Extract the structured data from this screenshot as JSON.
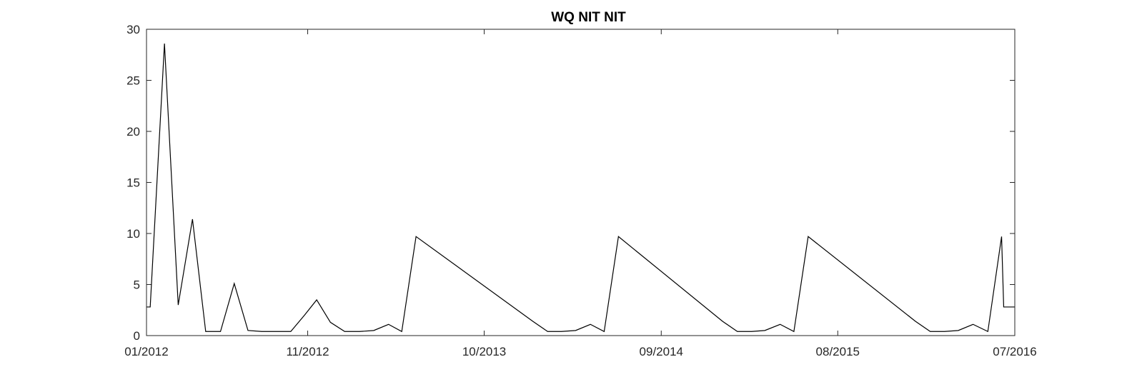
{
  "chart_data": {
    "type": "line",
    "title": "WQ NIT NIT",
    "xlabel": "",
    "ylabel": "",
    "x_axis_type": "date",
    "xlim": [
      "2012-01-01",
      "2016-07-01"
    ],
    "ylim": [
      0,
      30
    ],
    "x_ticks": [
      {
        "date": "2012-01-01",
        "label": "01/2012"
      },
      {
        "date": "2012-11-01",
        "label": "11/2012"
      },
      {
        "date": "2013-10-01",
        "label": "10/2013"
      },
      {
        "date": "2014-09-01",
        "label": "09/2014"
      },
      {
        "date": "2015-08-01",
        "label": "08/2015"
      },
      {
        "date": "2016-07-01",
        "label": "07/2016"
      }
    ],
    "y_ticks": [
      {
        "value": 0,
        "label": "0"
      },
      {
        "value": 5,
        "label": "5"
      },
      {
        "value": 10,
        "label": "10"
      },
      {
        "value": 15,
        "label": "15"
      },
      {
        "value": 20,
        "label": "20"
      },
      {
        "value": 25,
        "label": "25"
      },
      {
        "value": 30,
        "label": "30"
      }
    ],
    "grid": false,
    "legend": "none",
    "series": [
      {
        "color": "#000000",
        "points": [
          [
            "2012-01-01",
            2.8
          ],
          [
            "2012-01-08",
            2.8
          ],
          [
            "2012-02-04",
            28.6
          ],
          [
            "2012-03-01",
            3.0
          ],
          [
            "2012-03-28",
            11.4
          ],
          [
            "2012-04-22",
            0.4
          ],
          [
            "2012-05-20",
            0.4
          ],
          [
            "2012-06-15",
            5.1
          ],
          [
            "2012-07-11",
            0.5
          ],
          [
            "2012-08-06",
            0.4
          ],
          [
            "2012-09-02",
            0.4
          ],
          [
            "2012-09-30",
            0.4
          ],
          [
            "2012-10-26",
            2.0
          ],
          [
            "2012-11-18",
            3.5
          ],
          [
            "2012-12-14",
            1.3
          ],
          [
            "2013-01-10",
            0.4
          ],
          [
            "2013-02-07",
            0.4
          ],
          [
            "2013-03-06",
            0.5
          ],
          [
            "2013-04-03",
            1.1
          ],
          [
            "2013-04-28",
            0.4
          ],
          [
            "2013-05-25",
            9.7
          ],
          [
            "2014-01-01",
            1.4
          ],
          [
            "2014-01-29",
            0.4
          ],
          [
            "2014-02-24",
            0.4
          ],
          [
            "2014-03-23",
            0.5
          ],
          [
            "2014-04-20",
            1.1
          ],
          [
            "2014-05-16",
            0.4
          ],
          [
            "2014-06-12",
            9.7
          ],
          [
            "2014-12-26",
            1.4
          ],
          [
            "2015-01-23",
            0.4
          ],
          [
            "2015-02-19",
            0.4
          ],
          [
            "2015-03-16",
            0.5
          ],
          [
            "2015-04-14",
            1.1
          ],
          [
            "2015-05-10",
            0.4
          ],
          [
            "2015-06-06",
            9.7
          ],
          [
            "2015-12-26",
            1.4
          ],
          [
            "2016-01-23",
            0.4
          ],
          [
            "2016-02-19",
            0.4
          ],
          [
            "2016-03-16",
            0.5
          ],
          [
            "2016-04-13",
            1.1
          ],
          [
            "2016-05-11",
            0.4
          ],
          [
            "2016-06-06",
            9.7
          ],
          [
            "2016-06-10",
            2.8
          ],
          [
            "2016-07-01",
            2.8
          ]
        ]
      }
    ]
  }
}
